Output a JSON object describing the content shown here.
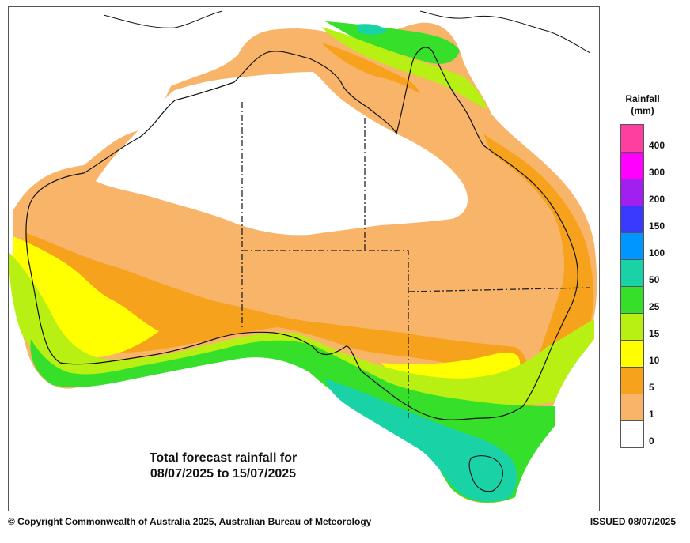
{
  "map": {
    "caption_line1": "Total forecast rainfall for",
    "caption_line2": "08/07/2025 to 15/07/2025"
  },
  "legend": {
    "title_line1": "Rainfall",
    "title_line2": "(mm)",
    "classes": [
      {
        "label": "400",
        "color": "#ff3f9f"
      },
      {
        "label": "300",
        "color": "#ff00ff"
      },
      {
        "label": "200",
        "color": "#a020f0"
      },
      {
        "label": "150",
        "color": "#3a3aff"
      },
      {
        "label": "100",
        "color": "#0096ff"
      },
      {
        "label": "50",
        "color": "#19d3a6"
      },
      {
        "label": "25",
        "color": "#36e02a"
      },
      {
        "label": "15",
        "color": "#b8f013"
      },
      {
        "label": "10",
        "color": "#ffff00"
      },
      {
        "label": "5",
        "color": "#f7a21c"
      },
      {
        "label": "1",
        "color": "#f8b469"
      },
      {
        "label": "0",
        "color": "#ffffff"
      }
    ]
  },
  "footer": {
    "copyright": "© Copyright Commonwealth of Australia 2025, Australian Bureau of Meteorology",
    "issued": "ISSUED 08/07/2025"
  }
}
